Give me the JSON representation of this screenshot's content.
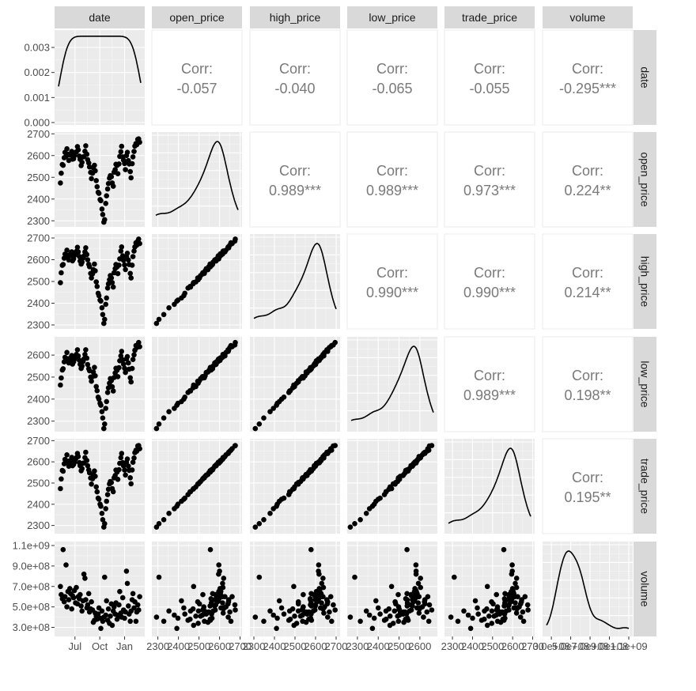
{
  "chart_data": {
    "type": "scatter",
    "variables": [
      "date",
      "open_price",
      "high_price",
      "low_price",
      "trade_price",
      "volume"
    ],
    "corr_label": "Corr:",
    "correlations": [
      {
        "row": "open_price",
        "col": "date",
        "text": "-0.057"
      },
      {
        "row": "high_price",
        "col": "date",
        "text": "-0.040"
      },
      {
        "row": "low_price",
        "col": "date",
        "text": "-0.065"
      },
      {
        "row": "trade_price",
        "col": "date",
        "text": "-0.055"
      },
      {
        "row": "volume",
        "col": "date",
        "text": "-0.295***"
      },
      {
        "row": "high_price",
        "col": "open_price",
        "text": "0.989***"
      },
      {
        "row": "low_price",
        "col": "open_price",
        "text": "0.989***"
      },
      {
        "row": "trade_price",
        "col": "open_price",
        "text": "0.973***"
      },
      {
        "row": "volume",
        "col": "open_price",
        "text": "0.224**"
      },
      {
        "row": "low_price",
        "col": "high_price",
        "text": "0.990***"
      },
      {
        "row": "trade_price",
        "col": "high_price",
        "text": "0.990***"
      },
      {
        "row": "volume",
        "col": "high_price",
        "text": "0.214**"
      },
      {
        "row": "trade_price",
        "col": "low_price",
        "text": "0.989***"
      },
      {
        "row": "volume",
        "col": "low_price",
        "text": "0.198**"
      },
      {
        "row": "volume",
        "col": "trade_price",
        "text": "0.195**"
      }
    ],
    "axes": {
      "date": {
        "range": [
          "2017-05-01",
          "2018-03-02"
        ],
        "tick_values": [
          "2017-07-01",
          "2017-10-01",
          "2018-01-01"
        ],
        "tick_labels": [
          "Jul",
          "Oct",
          "Jan"
        ]
      },
      "open_price": {
        "range": [
          2290,
          2690
        ],
        "tick_values": [
          2300,
          2400,
          2500,
          2600,
          2700
        ],
        "tick_labels": [
          "2300",
          "2400",
          "2500",
          "2600",
          "2700"
        ]
      },
      "high_price": {
        "range": [
          2300,
          2700
        ],
        "tick_values": [
          2300,
          2400,
          2500,
          2600,
          2700
        ],
        "tick_labels": [
          "2300",
          "2400",
          "2500",
          "2600",
          "2700"
        ]
      },
      "low_price": {
        "range": [
          2270,
          2665
        ],
        "tick_values": [
          2300,
          2400,
          2500,
          2600
        ],
        "tick_labels": [
          "2300",
          "2400",
          "2500",
          "2600"
        ]
      },
      "trade_price": {
        "range": [
          2280,
          2690
        ],
        "tick_values": [
          2300,
          2400,
          2500,
          2600,
          2700
        ],
        "tick_labels": [
          "2300",
          "2400",
          "2500",
          "2600",
          "2700"
        ]
      },
      "volume": {
        "range": [
          250000000,
          1100000000
        ],
        "tick_values": [
          300000000,
          500000000,
          700000000,
          900000000,
          1100000000
        ],
        "tick_labels": [
          "3.0e+08",
          "5.0e+08",
          "7.0e+08",
          "9.0e+08",
          "1.1e+09"
        ],
        "x_tick_values": [
          300000000,
          500000000,
          700000000,
          900000000,
          1100000000
        ],
        "x_tick_labels": [
          "3.0e+08",
          "5.0e+08",
          "7.0e+08",
          "9.0e+08",
          "1.1e+09"
        ]
      }
    },
    "density_axis": {
      "range": [
        0,
        0.0036
      ],
      "tick_values": [
        0.0,
        0.001,
        0.002,
        0.003
      ],
      "tick_labels": [
        "0.000",
        "0.001",
        "0.002",
        "0.003"
      ]
    },
    "price_series_by_date": [
      [
        "2017-05-08",
        2480,
        700000000.0
      ],
      [
        "2017-05-11",
        2520,
        620000000.0
      ],
      [
        "2017-05-15",
        2555,
        580000000.0
      ],
      [
        "2017-05-18",
        2560,
        1060000000.0
      ],
      [
        "2017-05-22",
        2590,
        550000000.0
      ],
      [
        "2017-05-25",
        2610,
        600000000.0
      ],
      [
        "2017-05-29",
        2600,
        910000000.0
      ],
      [
        "2017-06-01",
        2630,
        500000000.0
      ],
      [
        "2017-06-05",
        2600,
        650000000.0
      ],
      [
        "2017-06-08",
        2580,
        570000000.0
      ],
      [
        "2017-06-12",
        2600,
        680000000.0
      ],
      [
        "2017-06-15",
        2610,
        630000000.0
      ],
      [
        "2017-06-19",
        2620,
        480000000.0
      ],
      [
        "2017-06-22",
        2580,
        610000000.0
      ],
      [
        "2017-06-26",
        2590,
        590000000.0
      ],
      [
        "2017-06-29",
        2600,
        660000000.0
      ],
      [
        "2017-07-03",
        2610,
        540000000.0
      ],
      [
        "2017-07-06",
        2620,
        690000000.0
      ],
      [
        "2017-07-10",
        2640,
        530000000.0
      ],
      [
        "2017-07-13",
        2620,
        600000000.0
      ],
      [
        "2017-07-17",
        2600,
        580000000.0
      ],
      [
        "2017-07-20",
        2580,
        620000000.0
      ],
      [
        "2017-07-24",
        2560,
        510000000.0
      ],
      [
        "2017-07-27",
        2570,
        460000000.0
      ],
      [
        "2017-07-31",
        2590,
        560000000.0
      ],
      [
        "2017-08-03",
        2600,
        820000000.0
      ],
      [
        "2017-08-07",
        2620,
        780000000.0
      ],
      [
        "2017-08-10",
        2640,
        570000000.0
      ],
      [
        "2017-08-14",
        2610,
        490000000.0
      ],
      [
        "2017-08-17",
        2580,
        520000000.0
      ],
      [
        "2017-08-21",
        2560,
        630000000.0
      ],
      [
        "2017-08-24",
        2550,
        450000000.0
      ],
      [
        "2017-08-28",
        2520,
        480000000.0
      ],
      [
        "2017-08-31",
        2500,
        550000000.0
      ],
      [
        "2017-09-04",
        2520,
        470000000.0
      ],
      [
        "2017-09-07",
        2540,
        350000000.0
      ],
      [
        "2017-09-11",
        2560,
        370000000.0
      ],
      [
        "2017-09-14",
        2530,
        440000000.0
      ],
      [
        "2017-09-18",
        2480,
        410000000.0
      ],
      [
        "2017-09-21",
        2460,
        380000000.0
      ],
      [
        "2017-09-25",
        2430,
        430000000.0
      ],
      [
        "2017-09-28",
        2420,
        490000000.0
      ],
      [
        "2017-10-02",
        2400,
        390000000.0
      ],
      [
        "2017-10-05",
        2390,
        290000000.0
      ],
      [
        "2017-10-09",
        2360,
        460000000.0
      ],
      [
        "2017-10-12",
        2330,
        360000000.0
      ],
      [
        "2017-10-16",
        2290,
        400000000.0
      ],
      [
        "2017-10-19",
        2310,
        790000000.0
      ],
      [
        "2017-10-23",
        2380,
        420000000.0
      ],
      [
        "2017-10-26",
        2410,
        560000000.0
      ],
      [
        "2017-10-30",
        2450,
        370000000.0
      ],
      [
        "2017-11-02",
        2470,
        480000000.0
      ],
      [
        "2017-11-06",
        2490,
        340000000.0
      ],
      [
        "2017-11-09",
        2510,
        410000000.0
      ],
      [
        "2017-11-13",
        2500,
        530000000.0
      ],
      [
        "2017-11-16",
        2480,
        320000000.0
      ],
      [
        "2017-11-20",
        2460,
        460000000.0
      ],
      [
        "2017-11-23",
        2520,
        500000000.0
      ],
      [
        "2017-11-27",
        2540,
        430000000.0
      ],
      [
        "2017-11-30",
        2560,
        540000000.0
      ],
      [
        "2017-12-04",
        2550,
        380000000.0
      ],
      [
        "2017-12-07",
        2520,
        420000000.0
      ],
      [
        "2017-12-11",
        2560,
        520000000.0
      ],
      [
        "2017-12-14",
        2590,
        650000000.0
      ],
      [
        "2017-12-18",
        2620,
        440000000.0
      ],
      [
        "2017-12-21",
        2640,
        400000000.0
      ],
      [
        "2017-12-25",
        2600,
        590000000.0
      ],
      [
        "2017-12-28",
        2580,
        470000000.0
      ],
      [
        "2018-01-01",
        2560,
        390000000.0
      ],
      [
        "2018-01-04",
        2540,
        450000000.0
      ],
      [
        "2018-01-08",
        2600,
        850000000.0
      ],
      [
        "2018-01-11",
        2610,
        730000000.0
      ],
      [
        "2018-01-15",
        2580,
        510000000.0
      ],
      [
        "2018-01-18",
        2560,
        430000000.0
      ],
      [
        "2018-01-22",
        2520,
        360000000.0
      ],
      [
        "2018-01-25",
        2500,
        460000000.0
      ],
      [
        "2018-01-29",
        2560,
        570000000.0
      ],
      [
        "2018-02-01",
        2600,
        630000000.0
      ],
      [
        "2018-02-05",
        2620,
        490000000.0
      ],
      [
        "2018-02-08",
        2640,
        550000000.0
      ],
      [
        "2018-02-12",
        2660,
        360000000.0
      ],
      [
        "2018-02-15",
        2650,
        450000000.0
      ],
      [
        "2018-02-19",
        2670,
        520000000.0
      ],
      [
        "2018-02-22",
        2680,
        470000000.0
      ],
      [
        "2018-02-26",
        2660,
        600000000.0
      ]
    ]
  }
}
